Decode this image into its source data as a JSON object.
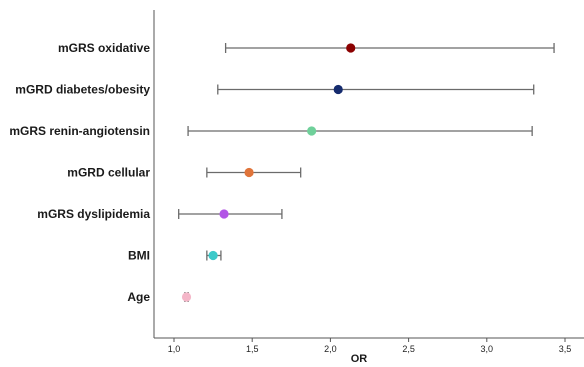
{
  "chart_data": {
    "type": "scatter",
    "subtype": "forest-plot",
    "xlabel": "OR",
    "xlim": [
      0.9,
      3.6
    ],
    "xticks": [
      1.0,
      1.5,
      2.0,
      2.5,
      3.0,
      3.5
    ],
    "xtick_labels": [
      "1,0",
      "1,5",
      "2,0",
      "2,5",
      "3,0",
      "3,5"
    ],
    "grid": false,
    "rows": [
      {
        "label": "mGRS oxidative",
        "or": 2.13,
        "ci_low": 1.33,
        "ci_high": 3.43,
        "color": "#8b0000"
      },
      {
        "label": "mGRD diabetes/obesity",
        "or": 2.05,
        "ci_low": 1.28,
        "ci_high": 3.3,
        "color": "#152b6e"
      },
      {
        "label": "mGRS renin-angiotensin",
        "or": 1.88,
        "ci_low": 1.09,
        "ci_high": 3.29,
        "color": "#6fd09a"
      },
      {
        "label": "mGRD cellular",
        "or": 1.48,
        "ci_low": 1.21,
        "ci_high": 1.81,
        "color": "#e0743a"
      },
      {
        "label": "mGRS dyslipidemia",
        "or": 1.32,
        "ci_low": 1.03,
        "ci_high": 1.69,
        "color": "#b255e6"
      },
      {
        "label": "BMI",
        "or": 1.25,
        "ci_low": 1.21,
        "ci_high": 1.3,
        "color": "#3cc9c9"
      },
      {
        "label": "Age",
        "or": 1.08,
        "ci_low": 1.07,
        "ci_high": 1.09,
        "color": "#f4b6c8"
      }
    ]
  }
}
